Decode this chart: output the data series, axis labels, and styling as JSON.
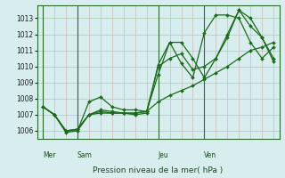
{
  "xlabel": "Pression niveau de la mer( hPa )",
  "ylim": [
    1005.5,
    1013.8
  ],
  "yticks": [
    1006,
    1007,
    1008,
    1009,
    1010,
    1011,
    1012,
    1013
  ],
  "background_color": "#d8eeee",
  "grid_color": "#aaccaa",
  "line_color": "#1a6b1a",
  "day_labels": [
    "Mer",
    "Sam",
    "Jeu",
    "Ven"
  ],
  "day_positions": [
    0,
    3,
    10,
    14
  ],
  "series": [
    [
      1007.5,
      1007.0,
      1005.9,
      1006.0,
      1007.8,
      1008.1,
      1007.5,
      1007.3,
      1007.3,
      1007.2,
      1009.5,
      1011.5,
      1010.2,
      1009.3,
      1012.1,
      1013.2,
      1013.2,
      1013.0,
      1011.5,
      1010.5,
      1011.2
    ],
    [
      1007.5,
      1007.0,
      1006.0,
      1006.0,
      1007.0,
      1007.3,
      1007.2,
      1007.1,
      1007.0,
      1007.1,
      1010.1,
      1011.5,
      1011.5,
      1010.5,
      1009.3,
      1010.5,
      1012.0,
      1013.5,
      1013.0,
      1011.8,
      1010.5
    ],
    [
      1007.5,
      1007.0,
      1006.0,
      1006.1,
      1007.0,
      1007.2,
      1007.1,
      1007.1,
      1007.1,
      1007.2,
      1010.0,
      1010.5,
      1010.8,
      1009.8,
      1010.0,
      1010.5,
      1011.8,
      1013.5,
      1012.5,
      1011.8,
      1010.3
    ],
    [
      1007.5,
      1007.0,
      1006.0,
      1006.1,
      1007.0,
      1007.1,
      1007.1,
      1007.1,
      1007.1,
      1007.2,
      1007.8,
      1008.2,
      1008.5,
      1008.8,
      1009.2,
      1009.6,
      1010.0,
      1010.5,
      1011.0,
      1011.2,
      1011.5
    ]
  ],
  "n_points": 21,
  "vline_positions": [
    0,
    3,
    10,
    14
  ]
}
